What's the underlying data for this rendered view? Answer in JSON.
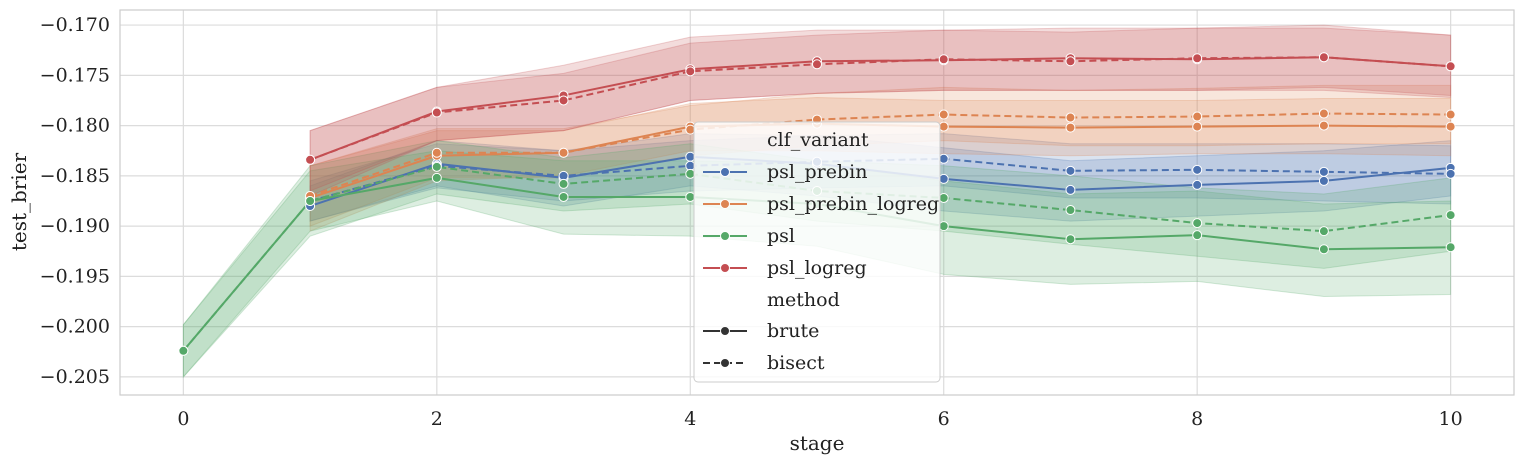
{
  "chart_data": {
    "type": "line",
    "xlabel": "stage",
    "ylabel": "test_brier",
    "xlim": [
      -0.5,
      10.5
    ],
    "ylim": [
      -0.2068,
      -0.1685
    ],
    "xticks": [
      0,
      2,
      4,
      6,
      8,
      10
    ],
    "xtick_labels": [
      "0",
      "2",
      "4",
      "6",
      "8",
      "10"
    ],
    "yticks": [
      -0.17,
      -0.175,
      -0.18,
      -0.185,
      -0.19,
      -0.195,
      -0.2,
      -0.205
    ],
    "ytick_labels": [
      "−0.170",
      "−0.175",
      "−0.180",
      "−0.185",
      "−0.190",
      "−0.195",
      "−0.200",
      "−0.205"
    ],
    "grid": true,
    "legend": {
      "placement": "center",
      "hue_title": "clf_variant",
      "style_title": "method",
      "style_items": [
        {
          "label": "brute",
          "dash": "solid"
        },
        {
          "label": "bisect",
          "dash": "dashed"
        }
      ]
    },
    "colors": {
      "psl_prebin": "#4c72b0",
      "psl_prebin_logreg": "#dd8452",
      "psl": "#55a868",
      "psl_logreg": "#c44e52",
      "style_legend": "#333333"
    },
    "series": [
      {
        "name": "psl_prebin",
        "method": "brute",
        "color": "#4c72b0",
        "x": [
          1,
          2,
          3,
          4,
          5,
          6,
          7,
          8,
          9,
          10
        ],
        "y": [
          -0.188,
          -0.1838,
          -0.1852,
          -0.1831,
          -0.1838,
          -0.1853,
          -0.1864,
          -0.1859,
          -0.1855,
          -0.1842
        ],
        "lo": [
          -0.1895,
          -0.186,
          -0.188,
          -0.186,
          -0.187,
          -0.1885,
          -0.1895,
          -0.189,
          -0.1885,
          -0.187
        ],
        "hi": [
          -0.186,
          -0.1815,
          -0.1825,
          -0.1808,
          -0.181,
          -0.1822,
          -0.1835,
          -0.183,
          -0.1825,
          -0.1815
        ]
      },
      {
        "name": "psl_prebin",
        "method": "bisect",
        "color": "#4c72b0",
        "x": [
          1,
          2,
          3,
          4,
          5,
          6,
          7,
          8,
          9,
          10
        ],
        "y": [
          -0.1875,
          -0.184,
          -0.185,
          -0.184,
          -0.1836,
          -0.1833,
          -0.1845,
          -0.1844,
          -0.1846,
          -0.1848
        ],
        "lo": [
          -0.1895,
          -0.1862,
          -0.1875,
          -0.1865,
          -0.1862,
          -0.186,
          -0.1872,
          -0.1872,
          -0.1875,
          -0.1878
        ],
        "hi": [
          -0.1855,
          -0.1818,
          -0.1825,
          -0.1815,
          -0.181,
          -0.1808,
          -0.1818,
          -0.1818,
          -0.1818,
          -0.182
        ]
      },
      {
        "name": "psl_prebin_logreg",
        "method": "brute",
        "color": "#dd8452",
        "x": [
          1,
          2,
          3,
          4,
          5,
          6,
          7,
          8,
          9,
          10
        ],
        "y": [
          -0.1872,
          -0.183,
          -0.1827,
          -0.1801,
          -0.1798,
          -0.1801,
          -0.1802,
          -0.1801,
          -0.18,
          -0.1801
        ],
        "lo": [
          -0.1905,
          -0.1855,
          -0.185,
          -0.1825,
          -0.1825,
          -0.1828,
          -0.183,
          -0.1828,
          -0.1828,
          -0.183
        ],
        "hi": [
          -0.184,
          -0.1805,
          -0.1805,
          -0.1778,
          -0.1772,
          -0.1775,
          -0.1775,
          -0.1775,
          -0.1773,
          -0.1773
        ]
      },
      {
        "name": "psl_prebin_logreg",
        "method": "bisect",
        "color": "#dd8452",
        "x": [
          1,
          2,
          3,
          4,
          5,
          6,
          7,
          8,
          9,
          10
        ],
        "y": [
          -0.187,
          -0.1827,
          -0.1827,
          -0.1804,
          -0.1794,
          -0.1789,
          -0.1792,
          -0.1791,
          -0.1788,
          -0.1789
        ],
        "lo": [
          -0.19,
          -0.1852,
          -0.1852,
          -0.183,
          -0.182,
          -0.1815,
          -0.182,
          -0.182,
          -0.1818,
          -0.1818
        ],
        "hi": [
          -0.184,
          -0.1803,
          -0.1803,
          -0.178,
          -0.1768,
          -0.1762,
          -0.1765,
          -0.1763,
          -0.176,
          -0.176
        ]
      },
      {
        "name": "psl",
        "method": "brute",
        "color": "#55a868",
        "x": [
          0,
          1,
          2,
          3,
          4,
          5,
          6,
          7,
          8,
          9,
          10
        ],
        "y": [
          -0.2024,
          -0.1875,
          -0.1852,
          -0.1871,
          -0.1871,
          -0.1878,
          -0.19,
          -0.1913,
          -0.1909,
          -0.1923,
          -0.1921
        ],
        "lo": [
          -0.205,
          -0.1905,
          -0.1875,
          -0.1908,
          -0.191,
          -0.192,
          -0.1948,
          -0.1958,
          -0.1955,
          -0.197,
          -0.1968
        ],
        "hi": [
          -0.1998,
          -0.1845,
          -0.1825,
          -0.1835,
          -0.1835,
          -0.1838,
          -0.1855,
          -0.1868,
          -0.1865,
          -0.1878,
          -0.1875
        ]
      },
      {
        "name": "psl",
        "method": "bisect",
        "color": "#55a868",
        "x": [
          0,
          1,
          2,
          3,
          4,
          5,
          6,
          7,
          8,
          9,
          10
        ],
        "y": [
          -0.2024,
          -0.1875,
          -0.1841,
          -0.1858,
          -0.1848,
          -0.1865,
          -0.1872,
          -0.1884,
          -0.1897,
          -0.1905,
          -0.1889
        ],
        "lo": [
          -0.205,
          -0.191,
          -0.1868,
          -0.1885,
          -0.1878,
          -0.1895,
          -0.1905,
          -0.1918,
          -0.193,
          -0.1942,
          -0.1925
        ],
        "hi": [
          -0.1998,
          -0.184,
          -0.1815,
          -0.1832,
          -0.1818,
          -0.1835,
          -0.184,
          -0.185,
          -0.1862,
          -0.1868,
          -0.1852
        ]
      },
      {
        "name": "psl_logreg",
        "method": "brute",
        "color": "#c44e52",
        "x": [
          1,
          2,
          3,
          4,
          5,
          6,
          7,
          8,
          9,
          10
        ],
        "y": [
          -0.1834,
          -0.1786,
          -0.177,
          -0.1744,
          -0.1736,
          -0.1735,
          -0.1733,
          -0.1734,
          -0.1732,
          -0.1741
        ],
        "lo": [
          -0.187,
          -0.1815,
          -0.1805,
          -0.1775,
          -0.1768,
          -0.1765,
          -0.1765,
          -0.1765,
          -0.1765,
          -0.1772
        ],
        "hi": [
          -0.1805,
          -0.1762,
          -0.174,
          -0.1712,
          -0.1705,
          -0.1705,
          -0.1703,
          -0.1703,
          -0.17,
          -0.171
        ]
      },
      {
        "name": "psl_logreg",
        "method": "bisect",
        "color": "#c44e52",
        "x": [
          1,
          2,
          3,
          4,
          5,
          6,
          7,
          8,
          9,
          10
        ],
        "y": [
          -0.1834,
          -0.1787,
          -0.1775,
          -0.1746,
          -0.1739,
          -0.1734,
          -0.1736,
          -0.1733,
          -0.1732,
          -0.1741
        ],
        "lo": [
          -0.1865,
          -0.1815,
          -0.1805,
          -0.1775,
          -0.1768,
          -0.1765,
          -0.1765,
          -0.1765,
          -0.1762,
          -0.177
        ],
        "hi": [
          -0.1805,
          -0.1762,
          -0.1748,
          -0.1718,
          -0.171,
          -0.1705,
          -0.1707,
          -0.1703,
          -0.1703,
          -0.171
        ]
      }
    ]
  }
}
